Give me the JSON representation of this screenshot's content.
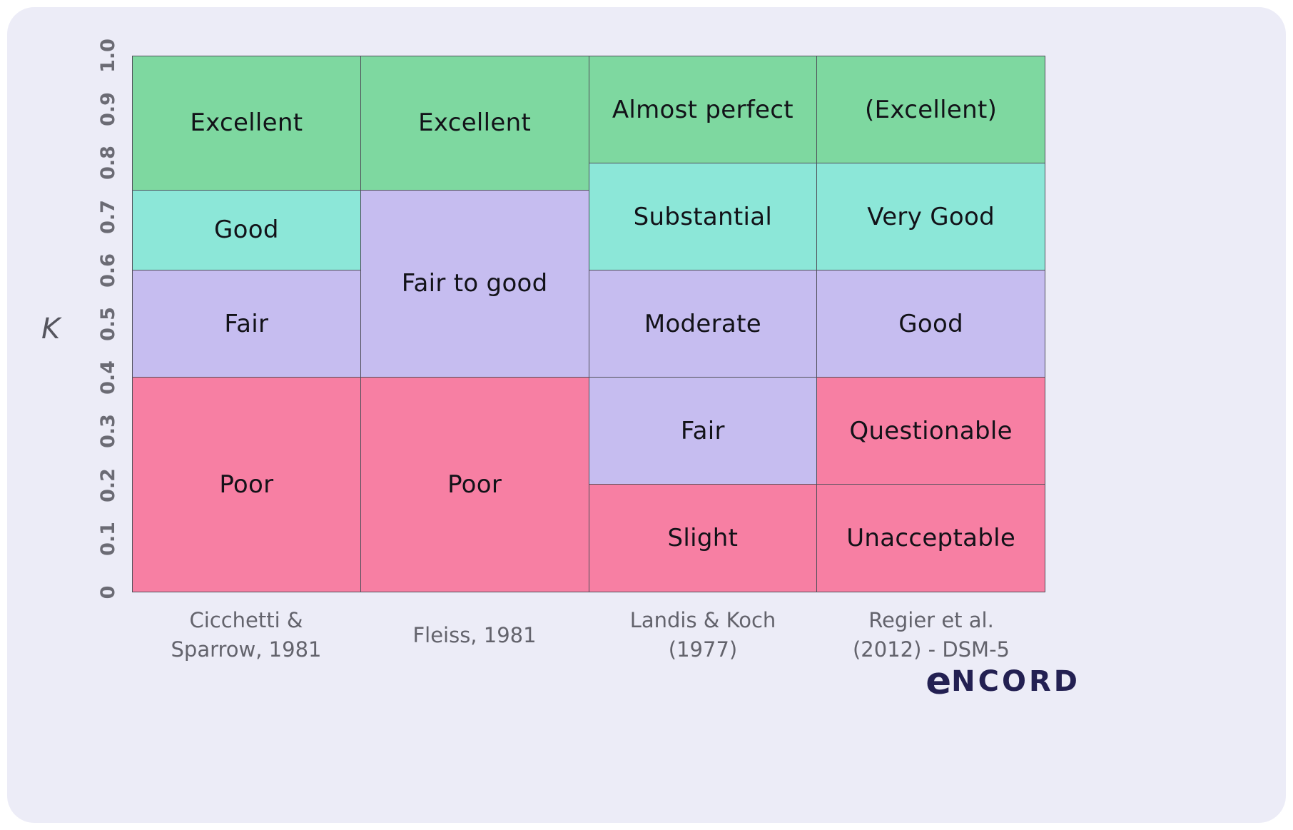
{
  "page": {
    "background_color": "#ffffff",
    "card_color": "#ECECF7"
  },
  "brand": {
    "logo_e": "e",
    "logo_rest": "ncord",
    "logo_color": "#232052"
  },
  "chart_data": {
    "type": "heatmap",
    "title": "",
    "ylabel": "K",
    "ylim": [
      0,
      1.0
    ],
    "ytick_labels": [
      "0",
      "0.1",
      "0.2",
      "0.3",
      "0.4",
      "0.5",
      "0.6",
      "0.7",
      "0.8",
      "0.9",
      "1.0"
    ],
    "grid": false,
    "legend": "none",
    "palette": {
      "green": "#7ED8A0",
      "teal": "#8CE7D8",
      "purple": "#C6BDF0",
      "pink": "#F77FA3"
    },
    "columns": [
      {
        "label_lines": [
          "Cicchetti &",
          "Sparrow, 1981"
        ],
        "segments": [
          {
            "label": "Excellent",
            "from": 0.75,
            "to": 1.0,
            "color": "green"
          },
          {
            "label": "Good",
            "from": 0.6,
            "to": 0.75,
            "color": "teal"
          },
          {
            "label": "Fair",
            "from": 0.4,
            "to": 0.6,
            "color": "purple"
          },
          {
            "label": "Poor",
            "from": 0.0,
            "to": 0.4,
            "color": "pink"
          }
        ]
      },
      {
        "label_lines": [
          "Fleiss, 1981"
        ],
        "segments": [
          {
            "label": "Excellent",
            "from": 0.75,
            "to": 1.0,
            "color": "green"
          },
          {
            "label": "Fair to good",
            "from": 0.4,
            "to": 0.75,
            "color": "purple"
          },
          {
            "label": "Poor",
            "from": 0.0,
            "to": 0.4,
            "color": "pink"
          }
        ]
      },
      {
        "label_lines": [
          "Landis & Koch",
          "(1977)"
        ],
        "segments": [
          {
            "label": "Almost perfect",
            "from": 0.8,
            "to": 1.0,
            "color": "green"
          },
          {
            "label": "Substantial",
            "from": 0.6,
            "to": 0.8,
            "color": "teal"
          },
          {
            "label": "Moderate",
            "from": 0.4,
            "to": 0.6,
            "color": "purple"
          },
          {
            "label": "Fair",
            "from": 0.2,
            "to": 0.4,
            "color": "purple"
          },
          {
            "label": "Slight",
            "from": 0.0,
            "to": 0.2,
            "color": "pink"
          }
        ]
      },
      {
        "label_lines": [
          "Regier et al.",
          "(2012) - DSM-5"
        ],
        "segments": [
          {
            "label": "(Excellent)",
            "from": 0.8,
            "to": 1.0,
            "color": "green"
          },
          {
            "label": "Very Good",
            "from": 0.6,
            "to": 0.8,
            "color": "teal"
          },
          {
            "label": "Good",
            "from": 0.4,
            "to": 0.6,
            "color": "purple"
          },
          {
            "label": "Questionable",
            "from": 0.2,
            "to": 0.4,
            "color": "pink"
          },
          {
            "label": "Unacceptable",
            "from": 0.0,
            "to": 0.2,
            "color": "pink"
          }
        ]
      }
    ]
  }
}
